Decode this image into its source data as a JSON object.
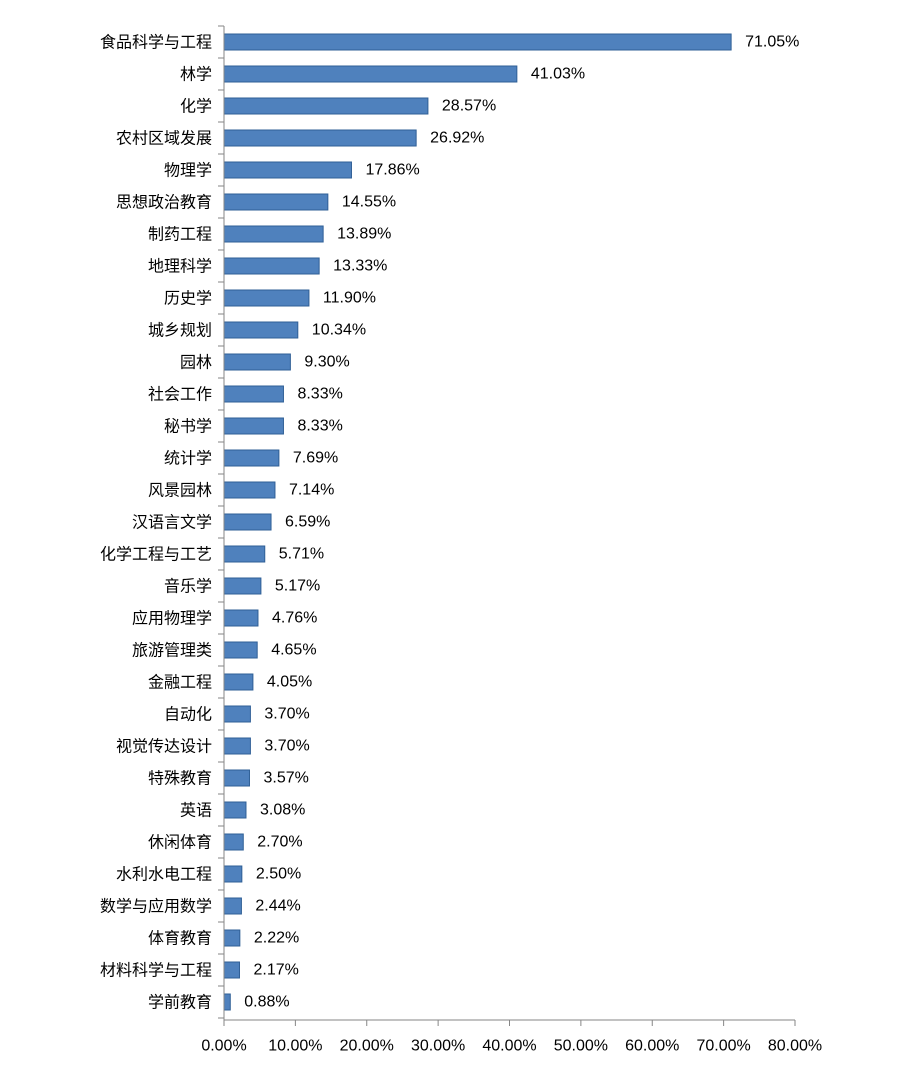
{
  "chart_data": {
    "type": "bar",
    "orientation": "horizontal",
    "title": "",
    "xlabel": "",
    "ylabel": "",
    "xlim": [
      0,
      80
    ],
    "grid": false,
    "legend": "none",
    "bar_color": "#4f81bd",
    "bar_edge_color": "#2f5f96",
    "x_ticks": [
      "0.00%",
      "10.00%",
      "20.00%",
      "30.00%",
      "40.00%",
      "50.00%",
      "60.00%",
      "70.00%",
      "80.00%"
    ],
    "categories": [
      "食品科学与工程",
      "林学",
      "化学",
      "农村区域发展",
      "物理学",
      "思想政治教育",
      "制药工程",
      "地理科学",
      "历史学",
      "城乡规划",
      "园林",
      "社会工作",
      "秘书学",
      "统计学",
      "风景园林",
      "汉语言文学",
      "化学工程与工艺",
      "音乐学",
      "应用物理学",
      "旅游管理类",
      "金融工程",
      "自动化",
      "视觉传达设计",
      "特殊教育",
      "英语",
      "休闲体育",
      "水利水电工程",
      "数学与应用数学",
      "体育教育",
      "材料科学与工程",
      "学前教育"
    ],
    "values": [
      71.05,
      41.03,
      28.57,
      26.92,
      17.86,
      14.55,
      13.89,
      13.33,
      11.9,
      10.34,
      9.3,
      8.33,
      8.33,
      7.69,
      7.14,
      6.59,
      5.71,
      5.17,
      4.76,
      4.65,
      4.05,
      3.7,
      3.7,
      3.57,
      3.08,
      2.7,
      2.5,
      2.44,
      2.22,
      2.17,
      0.88
    ],
    "value_labels": [
      "71.05%",
      "41.03%",
      "28.57%",
      "26.92%",
      "17.86%",
      "14.55%",
      "13.89%",
      "13.33%",
      "11.90%",
      "10.34%",
      "9.30%",
      "8.33%",
      "8.33%",
      "7.69%",
      "7.14%",
      "6.59%",
      "5.71%",
      "5.17%",
      "4.76%",
      "4.65%",
      "4.05%",
      "3.70%",
      "3.70%",
      "3.57%",
      "3.08%",
      "2.70%",
      "2.50%",
      "2.44%",
      "2.22%",
      "2.17%",
      "0.88%"
    ]
  }
}
